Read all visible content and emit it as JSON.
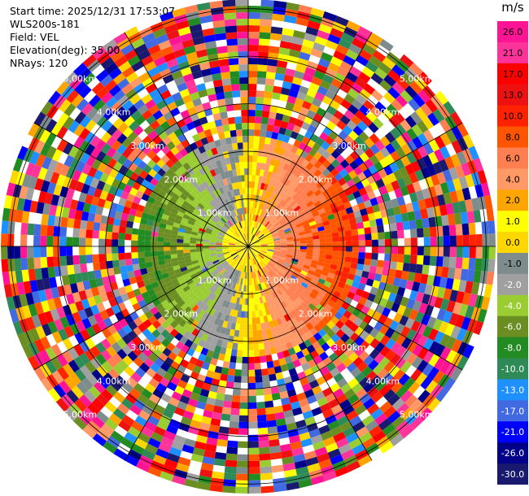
{
  "header": {
    "start_time": "Start time: 2025/12/31 17:53:07",
    "instrument": "WLS200s-181",
    "field": "Field: VEL",
    "elevation": "Elevation(deg): 35.00",
    "nrays": "NRays: 120"
  },
  "chart_data": {
    "type": "heatmap",
    "projection": "polar-ppi",
    "field": "VEL",
    "units": "m/s",
    "nrays": 120,
    "elevation_deg": 35.0,
    "range_rings_km": [
      1.0,
      2.0,
      3.0,
      4.0,
      5.0
    ],
    "range_ring_labels": [
      "1.00km",
      "2.00km",
      "3.00km",
      "4.00km",
      "5.00km"
    ],
    "max_range_km": 5.2,
    "grid": true,
    "legend": "right",
    "colorbar": {
      "title": "m/s",
      "tick_labels": [
        "26.0",
        "21.0",
        "17.0",
        "13.0",
        "10.0",
        "8.0",
        "6.0",
        "4.0",
        "2.0",
        "1.0",
        "0.0",
        "-1.0",
        "-2.0",
        "-4.0",
        "-6.0",
        "-8.0",
        "-10.0",
        "-13.0",
        "-17.0",
        "-21.0",
        "-26.0",
        "-30.0"
      ],
      "colors": [
        "#ff1493",
        "#ff3399",
        "#ff0000",
        "#ee1111",
        "#ff2200",
        "#ff5500",
        "#ff7f50",
        "#ff9966",
        "#ffa500",
        "#ffff00",
        "#ffd700",
        "#7f8c8d",
        "#a0a0a0",
        "#9acd32",
        "#6b8e23",
        "#228b22",
        "#2e8b57",
        "#1e90ff",
        "#4169e1",
        "#0000ff",
        "#00008b",
        "#191970"
      ]
    },
    "pattern": {
      "near_field_west": "negative (-1 to -6 m/s, greens)",
      "near_field_east": "positive (2 to 10 m/s, yellows/oranges)",
      "near_center": "~0 m/s (grey)",
      "far_field": "noise (full color range)"
    }
  }
}
